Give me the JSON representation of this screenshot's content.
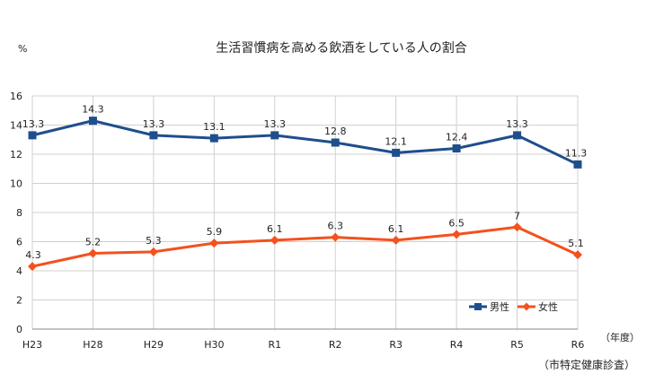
{
  "chart_data": {
    "type": "line",
    "title": "生活習慣病を高める飲酒をしている人の割合",
    "ylabel": "%",
    "xlabel": "（年度）",
    "ylim": [
      0,
      16
    ],
    "yticks": [
      0,
      2,
      4,
      6,
      8,
      10,
      12,
      14,
      16
    ],
    "grid": true,
    "legend": "bottom-right",
    "categories": [
      "H23",
      "H28",
      "H29",
      "H30",
      "R1",
      "R2",
      "R3",
      "R4",
      "R5",
      "R6"
    ],
    "series": [
      {
        "name": "男性",
        "color": "#1f4e8c",
        "marker": "square",
        "values": [
          13.3,
          14.3,
          13.3,
          13.1,
          13.3,
          12.8,
          12.1,
          12.4,
          13.3,
          11.3
        ],
        "labels": [
          "13.3",
          "14.3",
          "13.3",
          "13.1",
          "13.3",
          "12.8",
          "12.1",
          "12.4",
          "13.3",
          "11.3"
        ]
      },
      {
        "name": "女性",
        "color": "#f4511e",
        "marker": "diamond",
        "values": [
          4.3,
          5.2,
          5.3,
          5.9,
          6.1,
          6.3,
          6.1,
          6.5,
          7,
          5.1
        ],
        "labels": [
          "4.3",
          "5.2",
          "5.3",
          "5.9",
          "6.1",
          "6.3",
          "6.1",
          "6.5",
          "7",
          "5.1"
        ]
      }
    ]
  },
  "source": "（市特定健康診査）"
}
